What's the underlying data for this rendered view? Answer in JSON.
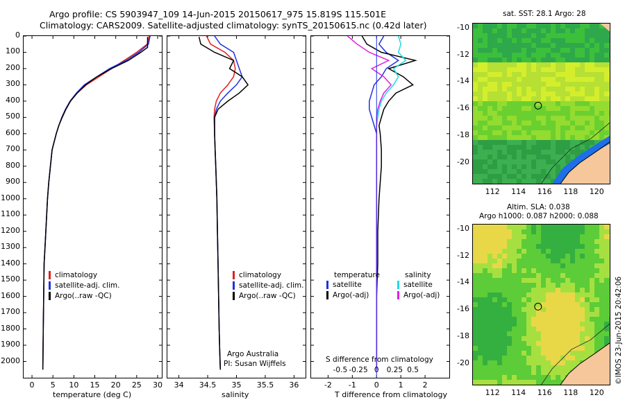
{
  "header": {
    "line1": "Argo profile: CS 5903947_109 14-Jun-2015 20150617_975 15.819S 115.501E",
    "line2": "Climatology: CARS2009. Satellite-adjusted climatology: synTS_20150615.nc (0.42d later)"
  },
  "colors": {
    "clim": "#e02020",
    "sat": "#2030e0",
    "argo": "#000000",
    "sal_sat": "#20d8e8",
    "sal_argo": "#e020e0",
    "land": "#f5c79a"
  },
  "chart_data": [
    {
      "type": "line",
      "id": "temperature",
      "xlabel": "temperature (deg C)",
      "xlim": [
        -2,
        31
      ],
      "xticks": [
        0,
        5,
        10,
        15,
        20,
        25,
        30
      ],
      "ylim": [
        2100,
        0
      ],
      "yticks": [
        0,
        100,
        200,
        300,
        400,
        500,
        600,
        700,
        800,
        900,
        1000,
        1100,
        1200,
        1300,
        1400,
        1500,
        1600,
        1700,
        1800,
        1900,
        2000
      ],
      "legend": [
        "climatology",
        "satellite-adj. clim.",
        "Argo(..raw -QC)"
      ],
      "series": [
        {
          "name": "climatology",
          "color": "#e02020",
          "x": [
            28,
            27.5,
            25,
            22,
            19,
            16,
            13,
            10.8,
            9.2,
            8.1,
            7.2,
            6.4,
            5.8,
            5.3,
            4.8,
            4.4,
            4.0,
            3.7,
            3.5,
            3.3,
            3.1,
            2.9,
            2.8,
            2.7,
            2.6
          ],
          "y": [
            0,
            50,
            100,
            150,
            200,
            250,
            300,
            350,
            400,
            450,
            500,
            550,
            600,
            650,
            700,
            800,
            900,
            1000,
            1100,
            1200,
            1300,
            1400,
            1600,
            1800,
            2050
          ]
        },
        {
          "name": "satellite-adj. clim.",
          "color": "#2030e0",
          "x": [
            28.2,
            27.8,
            25.5,
            22.5,
            18.5,
            15.5,
            12.5,
            10.6,
            9.1,
            8.0,
            7.1,
            6.4,
            5.8,
            5.3,
            4.8,
            4.4,
            4.0,
            3.7,
            3.5,
            3.3,
            3.1,
            2.9,
            2.8,
            2.7,
            2.6
          ],
          "y": [
            0,
            50,
            100,
            150,
            200,
            250,
            300,
            350,
            400,
            450,
            500,
            550,
            600,
            650,
            700,
            800,
            900,
            1000,
            1100,
            1200,
            1300,
            1400,
            1600,
            1800,
            2050
          ]
        },
        {
          "name": "Argo(..raw -QC)",
          "color": "#000000",
          "x": [
            27.6,
            27.6,
            26,
            23,
            19,
            15.5,
            12.8,
            10.8,
            9.2,
            8.1,
            7.2,
            6.4,
            5.8,
            5.3,
            4.8,
            4.4,
            4.0,
            3.7,
            3.5,
            3.3,
            3.1,
            2.9,
            2.8,
            2.7,
            2.6
          ],
          "y": [
            5,
            70,
            100,
            150,
            200,
            250,
            300,
            350,
            400,
            450,
            500,
            550,
            600,
            650,
            700,
            800,
            900,
            1000,
            1100,
            1200,
            1300,
            1400,
            1600,
            1800,
            2050
          ]
        }
      ]
    },
    {
      "type": "line",
      "id": "salinity",
      "xlabel": "salinity",
      "xlim": [
        33.8,
        36.2
      ],
      "xticks": [
        34,
        34.5,
        35,
        35.5,
        36
      ],
      "ylim": [
        2100,
        0
      ],
      "legend": [
        "climatology",
        "satellite-adj. clim.",
        "Argo(..raw -QC)"
      ],
      "credit": [
        "Argo Australia",
        "PI: Susan Wijffels"
      ],
      "series": [
        {
          "name": "climatology",
          "color": "#e02020",
          "x": [
            34.48,
            34.55,
            34.8,
            34.95,
            34.98,
            34.95,
            34.85,
            34.72,
            34.65,
            34.62,
            34.61,
            34.62,
            34.63,
            34.64,
            34.65,
            34.66,
            34.67,
            34.68,
            34.69,
            34.7,
            34.71,
            34.72
          ],
          "y": [
            0,
            50,
            100,
            150,
            200,
            250,
            300,
            350,
            400,
            450,
            500,
            600,
            700,
            800,
            900,
            1000,
            1200,
            1400,
            1600,
            1800,
            1950,
            2050
          ]
        },
        {
          "name": "satellite-adj. clim.",
          "color": "#2030e0",
          "x": [
            34.62,
            34.72,
            34.95,
            35.0,
            35.05,
            35.1,
            35.0,
            34.85,
            34.72,
            34.65,
            34.62,
            34.62,
            34.63,
            34.64,
            34.65,
            34.66,
            34.67,
            34.68,
            34.69,
            34.7,
            34.71,
            34.72
          ],
          "y": [
            0,
            50,
            100,
            150,
            200,
            250,
            300,
            350,
            400,
            450,
            500,
            600,
            700,
            800,
            900,
            1000,
            1200,
            1400,
            1600,
            1800,
            1950,
            2050
          ]
        },
        {
          "name": "Argo(..raw -QC)",
          "color": "#000000",
          "x": [
            34.35,
            34.38,
            34.62,
            34.95,
            34.88,
            35.1,
            35.2,
            35.05,
            34.85,
            34.68,
            34.62,
            34.62,
            34.63,
            34.64,
            34.65,
            34.66,
            34.67,
            34.68,
            34.69,
            34.7,
            34.71,
            34.72
          ],
          "y": [
            5,
            50,
            100,
            150,
            200,
            250,
            300,
            350,
            400,
            450,
            500,
            600,
            700,
            800,
            900,
            1000,
            1200,
            1400,
            1600,
            1800,
            1950,
            2050
          ]
        }
      ]
    },
    {
      "type": "line",
      "id": "difference",
      "xlabel": "T difference from climatology",
      "xlim": [
        -2.7,
        3.0
      ],
      "xticks": [
        -2,
        -1,
        0,
        1,
        2
      ],
      "top_axis_label": "S difference from climatology",
      "top_ticks": [
        "-0.5",
        "-0.25",
        "0",
        "0.25",
        "0.5"
      ],
      "ylim": [
        2100,
        0
      ],
      "legend_left_title": "temperature",
      "legend_right_title": "salinity",
      "legend": [
        "satellite",
        "Argo(-adj)",
        "satellite",
        "Argo(-adj)"
      ],
      "series": [
        {
          "name": "satellite",
          "color": "#2030e0",
          "x": [
            0.3,
            0.1,
            0.4,
            0.9,
            0.4,
            0.2,
            -0.1,
            -0.2,
            -0.3,
            -0.3,
            -0.2,
            -0.1,
            0,
            0,
            0,
            0,
            0,
            0,
            0,
            0,
            0
          ],
          "y": [
            0,
            50,
            100,
            150,
            200,
            250,
            300,
            350,
            400,
            450,
            500,
            550,
            600,
            700,
            800,
            1000,
            1200,
            1400,
            1600,
            1800,
            2050
          ]
        },
        {
          "name": "Argo(-adj)",
          "color": "#000000",
          "x": [
            -0.6,
            -0.4,
            0.2,
            1.6,
            0.5,
            1.1,
            1.5,
            0.8,
            0.5,
            0.3,
            0.2,
            0.1,
            0.15,
            0.2,
            0.2,
            0.1,
            0.05,
            0.05,
            0,
            0,
            0
          ],
          "y": [
            0,
            50,
            100,
            150,
            200,
            250,
            300,
            350,
            400,
            450,
            500,
            550,
            600,
            700,
            800,
            1000,
            1200,
            1400,
            1600,
            1800,
            2050
          ]
        },
        {
          "name": "satellite",
          "color": "#20d8e8",
          "x": [
            0.9,
            1.0,
            0.9,
            1.2,
            0.7,
            0.9,
            0.7,
            0.4,
            0.2,
            0.1,
            0.05,
            0,
            0,
            0,
            0,
            0,
            0,
            0,
            0,
            0,
            0
          ],
          "y": [
            0,
            50,
            100,
            150,
            200,
            250,
            300,
            350,
            400,
            450,
            500,
            550,
            600,
            700,
            800,
            1000,
            1200,
            1400,
            1600,
            1800,
            2050
          ]
        },
        {
          "name": "Argo(-adj)",
          "color": "#e020e0",
          "x": [
            -1.2,
            -0.8,
            -0.3,
            0.5,
            -0.2,
            0.3,
            0.6,
            0.3,
            0.15,
            0.05,
            0,
            0,
            0,
            0,
            0,
            0,
            0,
            0,
            0,
            0,
            0
          ],
          "y": [
            0,
            50,
            100,
            150,
            200,
            250,
            300,
            350,
            400,
            450,
            500,
            550,
            600,
            700,
            800,
            1000,
            1200,
            1400,
            1600,
            1800,
            2050
          ]
        }
      ]
    }
  ],
  "maps": {
    "sst": {
      "title": "sat. SST: 28.1  Argo: 28",
      "yticks": [
        "-10",
        "-12",
        "-14",
        "-16",
        "-18",
        "-20"
      ],
      "xticks": [
        "112",
        "114",
        "116",
        "118",
        "120"
      ]
    },
    "sla": {
      "title1": "Altim. SLA: 0.038",
      "title2": "Argo h1000: 0.087 h2000: 0.088",
      "yticks": [
        "-10",
        "-12",
        "-14",
        "-16",
        "-18",
        "-20"
      ],
      "xticks": [
        "112",
        "114",
        "116",
        "118",
        "120"
      ]
    }
  },
  "footer_credit": "©IMOS 23-Jun-2015 20:42:06"
}
